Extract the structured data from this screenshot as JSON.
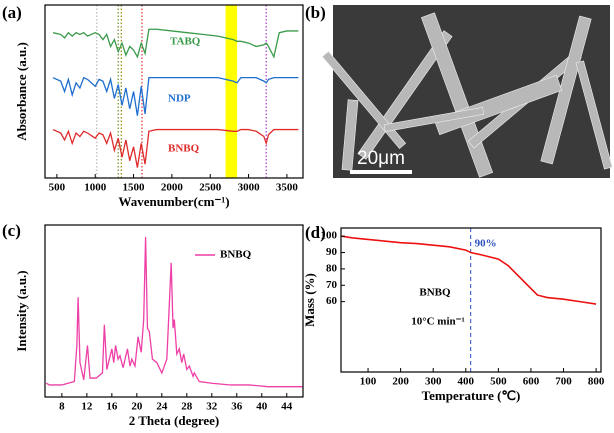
{
  "chart_data": [
    {
      "type": "spectra",
      "panel_label": "(a)",
      "x_label": "Wavenumber(cm⁻¹)",
      "y_label": "Absorbance (a.u.)",
      "xlim": [
        345,
        3710
      ],
      "ylim": [
        0,
        10
      ],
      "xticks": [
        500,
        1000,
        1500,
        2000,
        2500,
        3000,
        3500
      ],
      "highlight_band": [
        2700,
        2850
      ],
      "highlight_color": "#ffff00",
      "reference_lines": [
        {
          "x": 1020,
          "color": "#bbbbbb"
        },
        {
          "x": 1300,
          "color": "#6b8e23"
        },
        {
          "x": 1340,
          "color": "#8b8b00"
        },
        {
          "x": 1610,
          "color": "#e03030"
        },
        {
          "x": 3230,
          "color": "#aa33cc"
        }
      ],
      "x": [
        450,
        550,
        600,
        650,
        700,
        750,
        800,
        850,
        900,
        1000,
        1050,
        1100,
        1150,
        1200,
        1250,
        1300,
        1350,
        1400,
        1450,
        1500,
        1550,
        1600,
        1650,
        1700,
        1800,
        2000,
        2200,
        2400,
        2600,
        2800,
        2850,
        2900,
        3000,
        3100,
        3200,
        3230,
        3260,
        3330,
        3400,
        3500,
        3650
      ],
      "series": [
        {
          "name": "TABQ",
          "color": "#3a9a4a",
          "values": [
            8.4,
            8.3,
            8.1,
            8.4,
            8.2,
            8.4,
            8.3,
            8.4,
            8.2,
            8.4,
            8.3,
            8.0,
            8.3,
            7.6,
            8.0,
            7.3,
            7.8,
            7.1,
            7.6,
            7.4,
            7.0,
            7.8,
            7.2,
            8.6,
            8.6,
            8.5,
            8.4,
            8.3,
            8.2,
            8.0,
            7.9,
            7.9,
            7.8,
            7.6,
            7.7,
            7.8,
            7.6,
            7.0,
            8.4,
            8.5,
            8.5
          ]
        },
        {
          "name": "NDP",
          "color": "#1f6fd0",
          "values": [
            5.8,
            5.6,
            5.0,
            5.7,
            4.8,
            5.5,
            5.2,
            5.8,
            5.7,
            5.3,
            5.7,
            5.6,
            5.0,
            5.7,
            4.6,
            5.4,
            4.2,
            5.2,
            4.0,
            5.0,
            3.6,
            5.3,
            3.7,
            5.8,
            5.8,
            5.8,
            5.8,
            5.8,
            5.8,
            5.6,
            5.5,
            5.8,
            5.8,
            5.8,
            5.6,
            5.5,
            5.7,
            5.8,
            5.8,
            5.8,
            5.8
          ]
        },
        {
          "name": "BNBQ",
          "color": "#e02b2b",
          "values": [
            2.8,
            2.6,
            2.2,
            2.7,
            2.0,
            2.6,
            2.4,
            2.7,
            2.6,
            2.3,
            2.6,
            2.5,
            2.0,
            2.6,
            1.6,
            2.3,
            1.2,
            2.2,
            1.0,
            1.8,
            0.6,
            2.0,
            0.8,
            2.7,
            2.8,
            2.8,
            2.8,
            2.8,
            2.8,
            2.7,
            2.7,
            2.8,
            2.8,
            2.7,
            2.4,
            2.0,
            2.5,
            2.8,
            2.8,
            2.8,
            2.8
          ]
        }
      ]
    },
    {
      "type": "image",
      "panel_label": "(b)",
      "scale_bar_label": "20μm"
    },
    {
      "type": "xrd",
      "panel_label": "(c)",
      "x_label": "2 Theta (degree)",
      "y_label": "Intensity (a.u.)",
      "xlim": [
        5.3,
        46.6
      ],
      "ylim": [
        0,
        100
      ],
      "xticks": [
        8,
        12,
        16,
        20,
        24,
        28,
        32,
        36,
        40,
        44
      ],
      "x": [
        5.5,
        6,
        7,
        8,
        9,
        10,
        10.4,
        10.6,
        10.9,
        11.5,
        12.1,
        12.5,
        13.5,
        14.5,
        14.8,
        15.2,
        16,
        16.3,
        16.6,
        17,
        17.3,
        17.8,
        18.5,
        18.9,
        19.2,
        19.7,
        20.2,
        20.7,
        21.1,
        21.4,
        21.7,
        22,
        22.5,
        23.2,
        24,
        24.8,
        25.5,
        25.8,
        26,
        26.4,
        26.8,
        27.2,
        27.5,
        28,
        28.4,
        29,
        29.2,
        30,
        32,
        35,
        38,
        41,
        46.5
      ],
      "series": [
        {
          "name": "BNBQ",
          "color": "#ee3fa6",
          "values": [
            8,
            7,
            7,
            7,
            8,
            9,
            30,
            58,
            20,
            10,
            30,
            11,
            11,
            14,
            42,
            16,
            28,
            20,
            30,
            22,
            24,
            17,
            28,
            18,
            22,
            18,
            35,
            26,
            45,
            93,
            40,
            38,
            22,
            20,
            14,
            22,
            78,
            40,
            45,
            25,
            28,
            20,
            25,
            16,
            18,
            12,
            14,
            9,
            8,
            7,
            7,
            6,
            6
          ]
        }
      ]
    },
    {
      "type": "tga",
      "panel_label": "(d)",
      "x_label": "Temperature (℃)",
      "y_label": "Mass (%)",
      "xlim": [
        17,
        815
      ],
      "ylim": [
        17,
        105
      ],
      "xticks": [
        100,
        200,
        300,
        400,
        500,
        600,
        700,
        800
      ],
      "yticks": [
        60,
        70,
        80,
        90,
        100
      ],
      "x": [
        20,
        50,
        100,
        150,
        200,
        250,
        300,
        350,
        400,
        415,
        450,
        500,
        530,
        560,
        590,
        620,
        650,
        700,
        750,
        800
      ],
      "series": [
        {
          "color": "#ee1111",
          "values": [
            100,
            99,
            98,
            97,
            96,
            95.5,
            94.5,
            93.5,
            91.5,
            90,
            88.5,
            86,
            82,
            76,
            70,
            64,
            62.5,
            61.5,
            60,
            58.5
          ]
        }
      ],
      "reference_line": {
        "x": 415,
        "label": "90%",
        "color": "#2a4fbf"
      },
      "annotations": [
        "BNBQ",
        "10°C min⁻¹"
      ]
    }
  ]
}
